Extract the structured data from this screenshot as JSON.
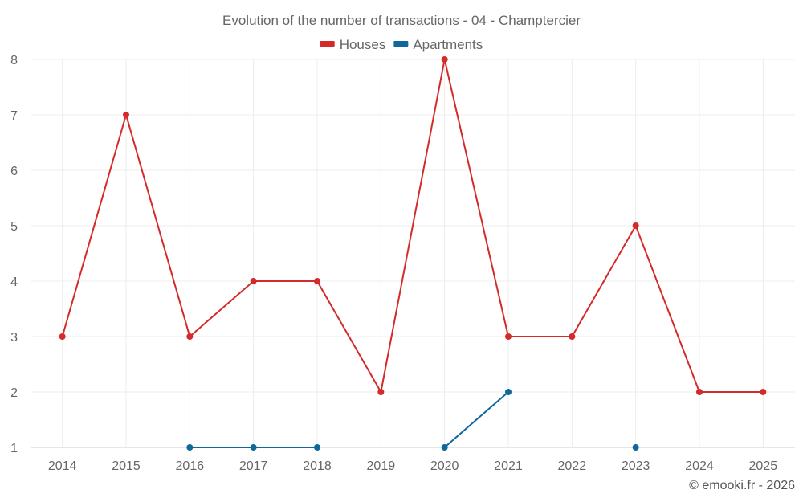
{
  "chart_data": {
    "type": "line",
    "title": "Evolution of the number of transactions - 04 - Champtercier",
    "categories": [
      "2014",
      "2015",
      "2016",
      "2017",
      "2018",
      "2019",
      "2020",
      "2021",
      "2022",
      "2023",
      "2024",
      "2025"
    ],
    "ylim": [
      1,
      8
    ],
    "yticks": [
      1,
      2,
      3,
      4,
      5,
      6,
      7,
      8
    ],
    "grid": true,
    "legend_position": "top-center",
    "series": [
      {
        "name": "Houses",
        "color": "#d42a2a",
        "values": [
          3,
          7,
          3,
          4,
          4,
          2,
          8,
          3,
          3,
          5,
          2,
          2
        ]
      },
      {
        "name": "Apartments",
        "color": "#10679b",
        "values": [
          null,
          null,
          1,
          1,
          1,
          null,
          1,
          2,
          null,
          1,
          null,
          null
        ]
      }
    ]
  },
  "credit": "© emooki.fr - 2026"
}
